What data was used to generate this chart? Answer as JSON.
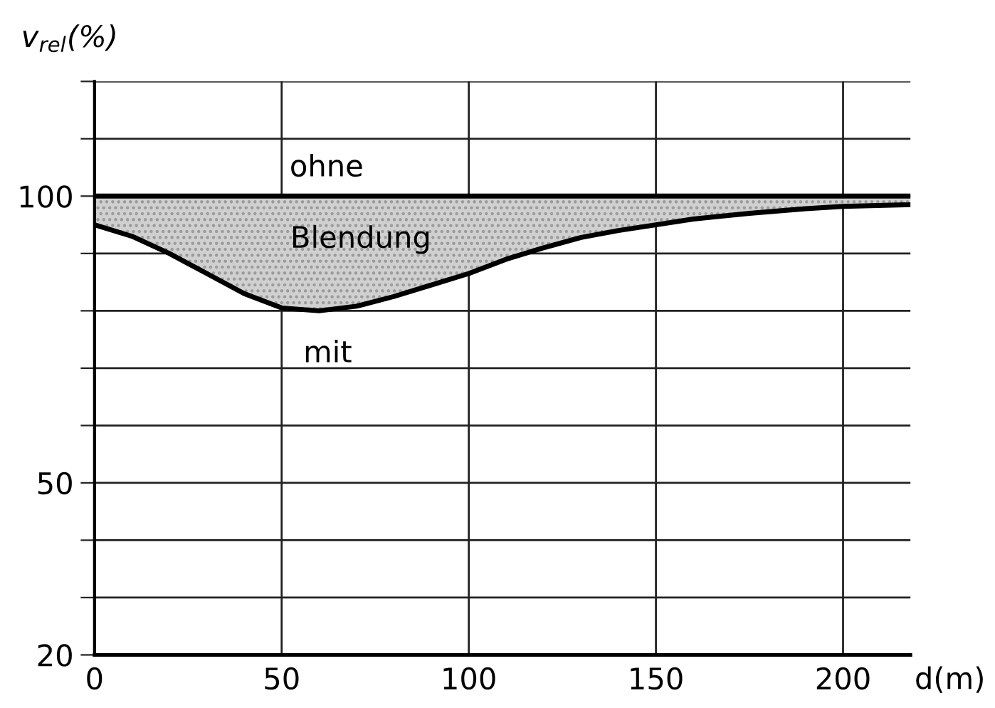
{
  "chart_data": {
    "type": "line",
    "ylabel": "v$_{rel}$(%)",
    "xlabel": "d(m)",
    "xlim": [
      0,
      218
    ],
    "ylim": [
      20,
      120
    ],
    "xticks": [
      0,
      50,
      100,
      150,
      200
    ],
    "yticks": [
      20,
      {
        "value": 30,
        "label": null
      },
      {
        "value": 40,
        "label": null
      },
      50,
      {
        "value": 60,
        "label": null
      },
      {
        "value": 70,
        "label": null
      },
      {
        "value": 80,
        "label": null
      },
      {
        "value": 90,
        "label": null
      },
      100,
      {
        "value": 110,
        "label": null
      },
      {
        "value": 120,
        "label": null
      }
    ],
    "grid": true,
    "series": [
      {
        "name": "ohne",
        "color": "#000000",
        "x": [
          0,
          218
        ],
        "values": [
          100,
          100
        ]
      },
      {
        "name": "mit",
        "color": "#000000",
        "x": [
          0,
          10,
          20,
          30,
          40,
          50,
          60,
          70,
          80,
          90,
          100,
          110,
          120,
          130,
          140,
          150,
          160,
          175,
          190,
          200,
          218
        ],
        "values": [
          95,
          93,
          90,
          86.5,
          83,
          80.5,
          80,
          80.8,
          82.5,
          84.5,
          86.5,
          89,
          91,
          92.8,
          94,
          95,
          96,
          97,
          97.8,
          98.2,
          98.5
        ],
        "lower": [
          95,
          93,
          90,
          86.5,
          83,
          80.5,
          80,
          80.8,
          82.5,
          84.5,
          86.5,
          89,
          91,
          92.8,
          94,
          95,
          96,
          97,
          97.8,
          98.2,
          98.5
        ],
        "upper": [
          100,
          100,
          100,
          100,
          100,
          100,
          100,
          100,
          100,
          100,
          100,
          100,
          100,
          100,
          100,
          100,
          100,
          100,
          100,
          100,
          100
        ]
      }
    ],
    "annotations": [
      "Blendung"
    ]
  }
}
